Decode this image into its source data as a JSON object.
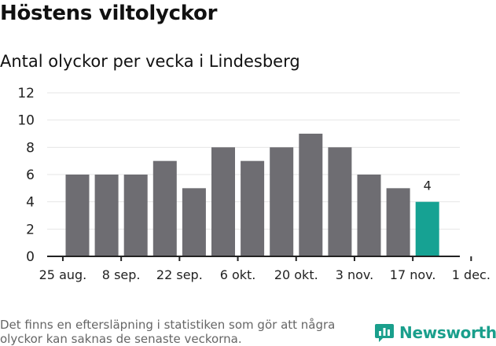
{
  "chart_data": {
    "type": "bar",
    "title": "Höstens viltolyckor",
    "subtitle": "Antal olyckor per vecka i Lindesberg",
    "ylim": [
      0,
      12
    ],
    "yticks": [
      0,
      2,
      4,
      6,
      8,
      10,
      12
    ],
    "values": [
      6,
      6,
      6,
      7,
      5,
      8,
      7,
      8,
      9,
      8,
      6,
      5,
      4
    ],
    "highlight_index": 12,
    "highlight_label": "4",
    "xtick_labels": [
      "25 aug.",
      "8 sep.",
      "22 sep.",
      "6 okt.",
      "20 okt.",
      "3 nov.",
      "17 nov.",
      "1 dec."
    ],
    "bar_color": "#6e6d72",
    "highlight_color": "#16a293",
    "grid": true
  },
  "footnote": "Det finns en eftersläpning i statistiken som gör att några olyckor kan saknas de senaste veckorna.",
  "brand": {
    "name": "Newsworthy",
    "color": "#1a9f8c",
    "icon": "newsworthy-logo-icon"
  }
}
